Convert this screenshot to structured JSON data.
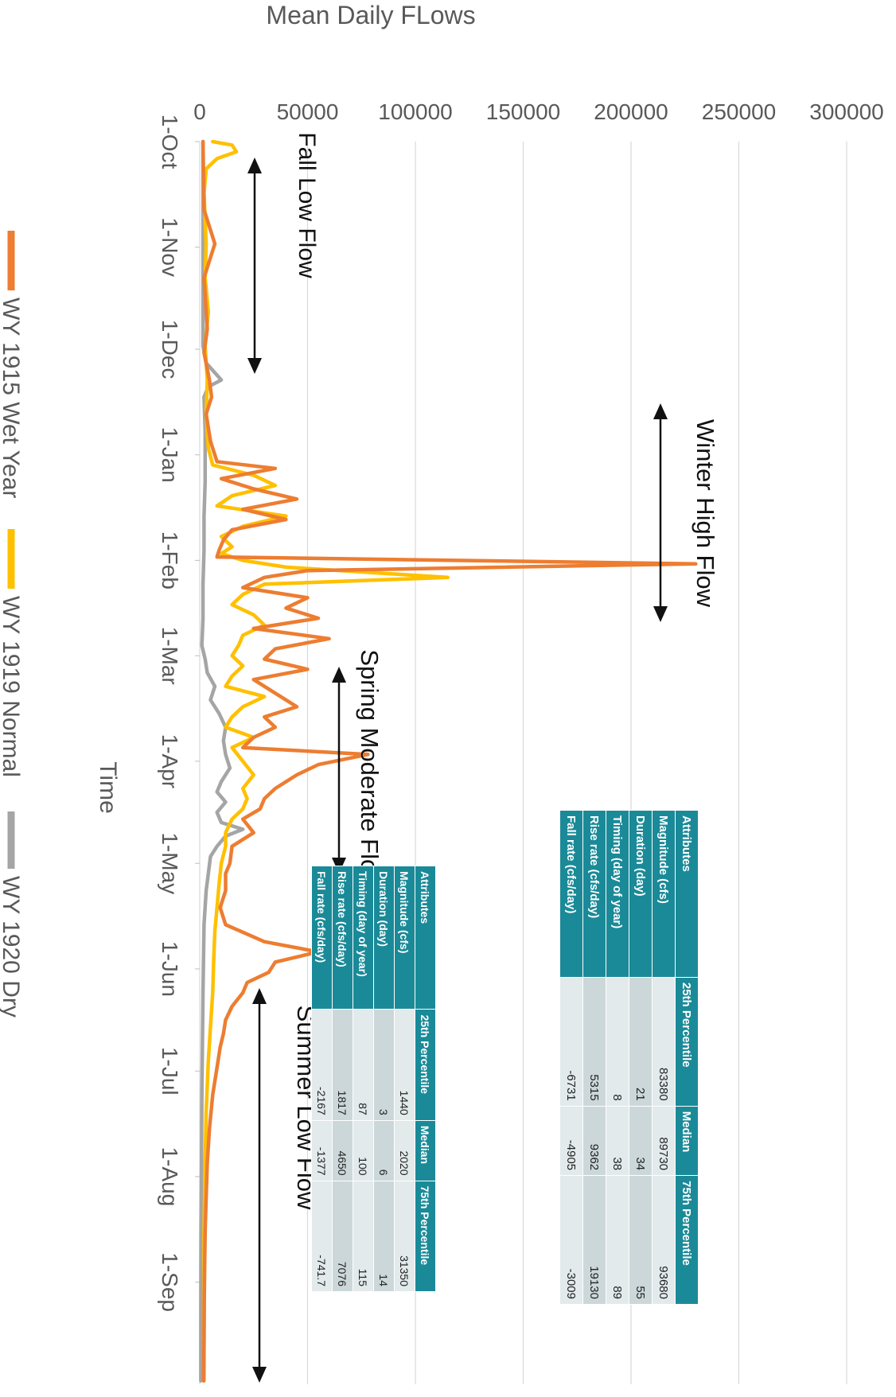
{
  "chart_data": {
    "type": "line",
    "ylabel": "Mean Daily FLows",
    "xlabel": "Time",
    "ylim": [
      0,
      300000
    ],
    "y_ticks": [
      "0",
      "50000",
      "100000",
      "150000",
      "200000",
      "250000",
      "300000"
    ],
    "x_ticks": [
      "1-Oct",
      "1-Nov",
      "1-Dec",
      "1-Jan",
      "1-Feb",
      "1-Mar",
      "1-Apr",
      "1-May",
      "1-Jun",
      "1-Jul",
      "1-Aug",
      "1-Sep"
    ],
    "grid": "horizontal",
    "legend_position": "bottom",
    "series": [
      {
        "name": "WY 1915 Wet Year",
        "color": "#ed7d31",
        "points": [
          [
            0,
            1500
          ],
          [
            20,
            2000
          ],
          [
            30,
            7000
          ],
          [
            40,
            2000
          ],
          [
            55,
            3500
          ],
          [
            62,
            2000
          ],
          [
            70,
            4500
          ],
          [
            75,
            5500
          ],
          [
            80,
            3000
          ],
          [
            88,
            5000
          ],
          [
            94,
            8000
          ],
          [
            96,
            35000
          ],
          [
            99,
            10000
          ],
          [
            102,
            25000
          ],
          [
            105,
            45000
          ],
          [
            108,
            20000
          ],
          [
            111,
            40000
          ],
          [
            114,
            15000
          ],
          [
            117,
            11000
          ],
          [
            120,
            9000
          ],
          [
            122,
            8000
          ],
          [
            124,
            230000
          ],
          [
            126,
            50000
          ],
          [
            128,
            30000
          ],
          [
            131,
            20000
          ],
          [
            134,
            50000
          ],
          [
            137,
            40000
          ],
          [
            140,
            55000
          ],
          [
            143,
            25000
          ],
          [
            146,
            60000
          ],
          [
            149,
            35000
          ],
          [
            152,
            30000
          ],
          [
            155,
            50000
          ],
          [
            158,
            25000
          ],
          [
            162,
            35000
          ],
          [
            166,
            45000
          ],
          [
            169,
            30000
          ],
          [
            172,
            35000
          ],
          [
            175,
            25000
          ],
          [
            178,
            20000
          ],
          [
            180,
            78000
          ],
          [
            183,
            55000
          ],
          [
            186,
            45000
          ],
          [
            190,
            35000
          ],
          [
            193,
            30000
          ],
          [
            196,
            28000
          ],
          [
            199,
            20000
          ],
          [
            203,
            25000
          ],
          [
            207,
            15000
          ],
          [
            212,
            14000
          ],
          [
            215,
            12000
          ],
          [
            220,
            12000
          ],
          [
            225,
            9500
          ],
          [
            230,
            12000
          ],
          [
            235,
            30000
          ],
          [
            238,
            55000
          ],
          [
            241,
            35000
          ],
          [
            244,
            32000
          ],
          [
            247,
            22000
          ],
          [
            250,
            20000
          ],
          [
            254,
            15000
          ],
          [
            258,
            12000
          ],
          [
            262,
            11000
          ],
          [
            266,
            9500
          ],
          [
            272,
            8000
          ],
          [
            280,
            6000
          ],
          [
            290,
            4500
          ],
          [
            300,
            3500
          ],
          [
            310,
            3000
          ],
          [
            320,
            2500
          ],
          [
            330,
            2300
          ],
          [
            340,
            2100
          ],
          [
            352,
            2000
          ],
          [
            364,
            1800
          ]
        ]
      },
      {
        "name": "WY 1919 Normal",
        "color": "#ffc000",
        "points": [
          [
            0,
            6000
          ],
          [
            1,
            15000
          ],
          [
            3,
            17000
          ],
          [
            5,
            8000
          ],
          [
            8,
            3000
          ],
          [
            15,
            2000
          ],
          [
            30,
            3000
          ],
          [
            40,
            2500
          ],
          [
            50,
            4000
          ],
          [
            60,
            2500
          ],
          [
            70,
            3500
          ],
          [
            80,
            3000
          ],
          [
            90,
            4000
          ],
          [
            95,
            6000
          ],
          [
            98,
            25000
          ],
          [
            101,
            35000
          ],
          [
            104,
            15000
          ],
          [
            107,
            8000
          ],
          [
            110,
            40000
          ],
          [
            113,
            20000
          ],
          [
            116,
            10000
          ],
          [
            119,
            15000
          ],
          [
            121,
            10000
          ],
          [
            123,
            20000
          ],
          [
            125,
            40000
          ],
          [
            128,
            115000
          ],
          [
            130,
            30000
          ],
          [
            133,
            20000
          ],
          [
            136,
            15000
          ],
          [
            139,
            25000
          ],
          [
            142,
            30000
          ],
          [
            145,
            20000
          ],
          [
            148,
            18000
          ],
          [
            151,
            15000
          ],
          [
            154,
            20000
          ],
          [
            157,
            15000
          ],
          [
            160,
            12000
          ],
          [
            163,
            30000
          ],
          [
            166,
            20000
          ],
          [
            169,
            15000
          ],
          [
            172,
            12000
          ],
          [
            175,
            25000
          ],
          [
            178,
            15000
          ],
          [
            182,
            20000
          ],
          [
            186,
            25000
          ],
          [
            190,
            20000
          ],
          [
            193,
            22000
          ],
          [
            196,
            20000
          ],
          [
            199,
            15000
          ],
          [
            203,
            12000
          ],
          [
            207,
            12000
          ],
          [
            212,
            10000
          ],
          [
            218,
            9000
          ],
          [
            225,
            8000
          ],
          [
            232,
            7000
          ],
          [
            240,
            6500
          ],
          [
            250,
            6000
          ],
          [
            260,
            5000
          ],
          [
            270,
            4000
          ],
          [
            285,
            3000
          ],
          [
            300,
            2500
          ],
          [
            320,
            2000
          ],
          [
            340,
            2000
          ],
          [
            364,
            2000
          ]
        ]
      },
      {
        "name": "WY 1920 Dry",
        "color": "#a5a5a5",
        "points": [
          [
            0,
            1500
          ],
          [
            20,
            1500
          ],
          [
            40,
            1500
          ],
          [
            60,
            1500
          ],
          [
            65,
            3000
          ],
          [
            70,
            10000
          ],
          [
            72,
            4000
          ],
          [
            75,
            2000
          ],
          [
            85,
            2500
          ],
          [
            100,
            2500
          ],
          [
            110,
            2000
          ],
          [
            120,
            2000
          ],
          [
            130,
            1500
          ],
          [
            140,
            1500
          ],
          [
            148,
            1000
          ],
          [
            152,
            2500
          ],
          [
            156,
            3500
          ],
          [
            160,
            7000
          ],
          [
            164,
            5000
          ],
          [
            168,
            9000
          ],
          [
            172,
            12000
          ],
          [
            176,
            11000
          ],
          [
            180,
            12000
          ],
          [
            184,
            14000
          ],
          [
            188,
            10000
          ],
          [
            191,
            8000
          ],
          [
            194,
            12000
          ],
          [
            197,
            8000
          ],
          [
            200,
            10000
          ],
          [
            202,
            20000
          ],
          [
            204,
            12000
          ],
          [
            207,
            8000
          ],
          [
            210,
            5000
          ],
          [
            215,
            4000
          ],
          [
            220,
            3000
          ],
          [
            230,
            2000
          ],
          [
            250,
            1500
          ],
          [
            280,
            1000
          ],
          [
            300,
            800
          ],
          [
            320,
            600
          ],
          [
            340,
            500
          ],
          [
            364,
            500
          ]
        ]
      }
    ]
  },
  "annotations": {
    "fall": "Fall Low Flow",
    "winter": "Winter High Flow",
    "spring": "Spring Moderate Flow",
    "summer": "Summer Low Flow"
  },
  "tables": {
    "winter": {
      "headers": [
        "Attributes",
        "25th Percentile",
        "Median",
        "75th Percentile"
      ],
      "rows": [
        [
          "Magnitude (cfs)",
          "83380",
          "89730",
          "93680"
        ],
        [
          "Duration (day)",
          "21",
          "34",
          "55"
        ],
        [
          "Timing (day of year)",
          "8",
          "38",
          "89"
        ],
        [
          "Rise rate (cfs/day)",
          "5315",
          "9362",
          "19130"
        ],
        [
          "Fall rate (cfs/day)",
          "-6731",
          "-4905",
          "-3009"
        ]
      ]
    },
    "spring": {
      "headers": [
        "Attributes",
        "25th Percentile",
        "Median",
        "75th Percentile"
      ],
      "rows": [
        [
          "Magnitude (cfs)",
          "1440",
          "2020",
          "31350"
        ],
        [
          "Duration (day)",
          "3",
          "6",
          "14"
        ],
        [
          "Timing (day of year)",
          "87",
          "100",
          "115"
        ],
        [
          "Rise rate (cfs/day)",
          "1817",
          "4650",
          "7076"
        ],
        [
          "Fall rate (cfs/day)",
          "-2167",
          "-1377",
          "-741.7"
        ]
      ]
    }
  }
}
